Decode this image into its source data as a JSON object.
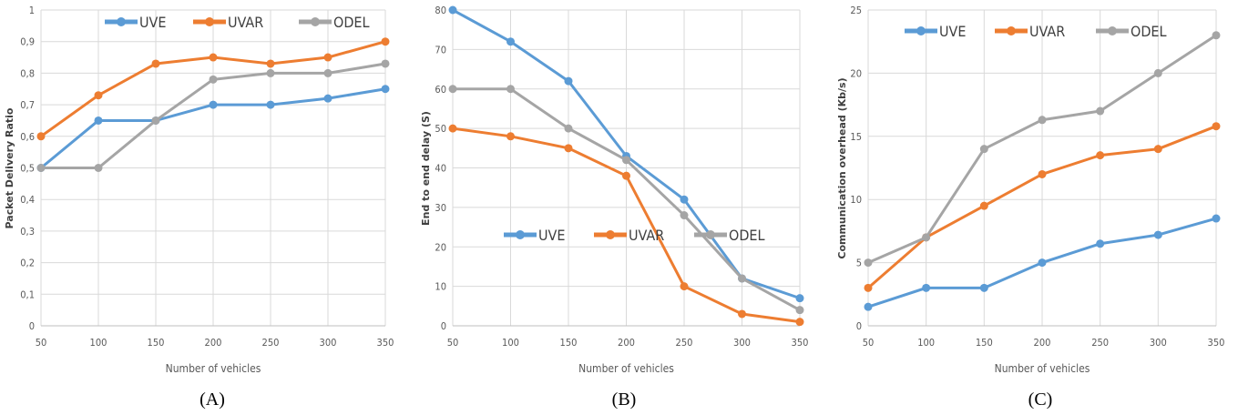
{
  "colors": {
    "UVE": "#5b9bd5",
    "UVAR": "#ed7d31",
    "ODEL": "#a5a5a5",
    "grid": "#d9d9d9"
  },
  "chart_data": [
    {
      "type": "line",
      "caption": "(A)",
      "xlabel": "Number of vehicles",
      "ylabel": "Packet Delivery Ratio",
      "x": [
        50,
        100,
        150,
        200,
        250,
        300,
        350
      ],
      "xticks": [
        "50",
        "100",
        "150",
        "200",
        "250",
        "300",
        "350"
      ],
      "ylim": [
        0,
        1
      ],
      "yticks": [
        "0",
        "0,1",
        "0,2",
        "0,3",
        "0,4",
        "0,5",
        "0,6",
        "0,7",
        "0,8",
        "0,9",
        "1"
      ],
      "legend_position": "top",
      "grid": true,
      "series": [
        {
          "name": "UVE",
          "values": [
            0.5,
            0.65,
            0.65,
            0.7,
            0.7,
            0.72,
            0.75
          ]
        },
        {
          "name": "UVAR",
          "values": [
            0.6,
            0.73,
            0.83,
            0.85,
            0.83,
            0.85,
            0.9
          ]
        },
        {
          "name": "ODEL",
          "values": [
            0.5,
            0.5,
            0.65,
            0.78,
            0.8,
            0.8,
            0.83
          ]
        }
      ]
    },
    {
      "type": "line",
      "caption": "(B)",
      "xlabel": "Number of vehicles",
      "ylabel": "End to end delay (S)",
      "x": [
        50,
        100,
        150,
        200,
        250,
        300,
        350
      ],
      "xticks": [
        "50",
        "100",
        "150",
        "200",
        "250",
        "300",
        "350"
      ],
      "ylim": [
        0,
        80
      ],
      "yticks": [
        "0",
        "10",
        "20",
        "30",
        "40",
        "50",
        "60",
        "70",
        "80"
      ],
      "legend_position": "center-right",
      "grid": true,
      "series": [
        {
          "name": "UVE",
          "values": [
            80,
            72,
            62,
            43,
            32,
            12,
            7
          ]
        },
        {
          "name": "UVAR",
          "values": [
            50,
            48,
            45,
            38,
            10,
            3,
            1
          ]
        },
        {
          "name": "ODEL",
          "values": [
            60,
            60,
            50,
            42,
            28,
            12,
            4
          ]
        }
      ]
    },
    {
      "type": "line",
      "caption": "(C)",
      "xlabel": "Number of vehicles",
      "ylabel": "Communication overhead (Kb/s)",
      "x": [
        50,
        100,
        150,
        200,
        250,
        300,
        350
      ],
      "xticks": [
        "50",
        "100",
        "150",
        "200",
        "250",
        "300",
        "350"
      ],
      "ylim": [
        0,
        25
      ],
      "yticks": [
        "0",
        "5",
        "10",
        "15",
        "20",
        "25"
      ],
      "legend_position": "top",
      "grid": true,
      "series": [
        {
          "name": "UVE",
          "values": [
            1.5,
            3,
            3,
            5,
            6.5,
            7.2,
            8.5
          ]
        },
        {
          "name": "UVAR",
          "values": [
            3,
            7,
            9.5,
            12,
            13.5,
            14,
            15.8
          ]
        },
        {
          "name": "ODEL",
          "values": [
            5,
            7,
            14,
            16.3,
            17,
            20,
            23
          ]
        }
      ]
    }
  ]
}
